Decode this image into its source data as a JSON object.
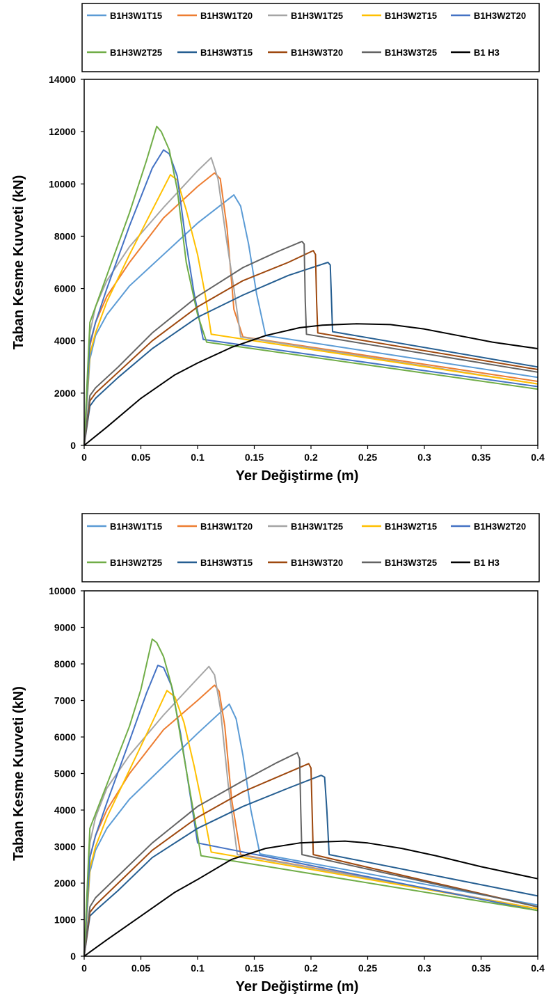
{
  "chart_data": [
    {
      "type": "line",
      "xlabel": "Yer Değiştirme (m)",
      "ylabel": "Taban Kesme Kuvveti (kN)",
      "xlim": [
        0,
        0.4
      ],
      "ylim": [
        0,
        14000
      ],
      "xticks": [
        0,
        0.05,
        0.1,
        0.15,
        0.2,
        0.25,
        0.3,
        0.35,
        0.4
      ],
      "xtick_labels": [
        "0",
        "0.05",
        "0.1",
        "0.15",
        "0.2",
        "0.25",
        "0.3",
        "0.35",
        "0.4"
      ],
      "yticks": [
        0,
        2000,
        4000,
        6000,
        8000,
        10000,
        12000,
        14000
      ],
      "ytick_labels": [
        "0",
        "2000",
        "4000",
        "6000",
        "8000",
        "10000",
        "12000",
        "14000"
      ],
      "grid": false,
      "legend_position": "top",
      "series": [
        {
          "name": "B1H3W1T15",
          "color": "#5B9BD5",
          "x": [
            0,
            0.005,
            0.01,
            0.02,
            0.04,
            0.07,
            0.1,
            0.132,
            0.138,
            0.145,
            0.152,
            0.16,
            0.4
          ],
          "y": [
            0,
            3300,
            4200,
            5000,
            6100,
            7300,
            8500,
            9580,
            9150,
            7700,
            5800,
            4200,
            2600
          ]
        },
        {
          "name": "B1H3W1T20",
          "color": "#ED7D31",
          "x": [
            0,
            0.005,
            0.01,
            0.02,
            0.04,
            0.07,
            0.1,
            0.115,
            0.12,
            0.126,
            0.132,
            0.14,
            0.4
          ],
          "y": [
            0,
            3800,
            4700,
            5700,
            7000,
            8700,
            9900,
            10420,
            10200,
            8300,
            5200,
            4150,
            2450
          ]
        },
        {
          "name": "B1H3W1T25",
          "color": "#A5A5A5",
          "x": [
            0,
            0.005,
            0.01,
            0.02,
            0.04,
            0.07,
            0.1,
            0.112,
            0.118,
            0.125,
            0.132,
            0.138,
            0.4
          ],
          "y": [
            0,
            4300,
            5300,
            6300,
            7600,
            9100,
            10500,
            11000,
            10200,
            8000,
            6000,
            4150,
            2350
          ]
        },
        {
          "name": "B1H3W2T15",
          "color": "#FFC000",
          "x": [
            0,
            0.005,
            0.01,
            0.02,
            0.04,
            0.06,
            0.076,
            0.082,
            0.09,
            0.1,
            0.107,
            0.112,
            0.4
          ],
          "y": [
            0,
            3500,
            4300,
            5500,
            7300,
            9000,
            10350,
            10150,
            9000,
            7300,
            5700,
            4250,
            2350
          ]
        },
        {
          "name": "B1H3W2T20",
          "color": "#4472C4",
          "x": [
            0,
            0.005,
            0.01,
            0.02,
            0.04,
            0.06,
            0.07,
            0.075,
            0.082,
            0.09,
            0.097,
            0.105,
            0.4
          ],
          "y": [
            0,
            3900,
            4700,
            6000,
            8400,
            10600,
            11300,
            11150,
            10300,
            7700,
            5800,
            4050,
            2250
          ]
        },
        {
          "name": "B1H3W2T25",
          "color": "#70AD47",
          "x": [
            0,
            0.005,
            0.01,
            0.02,
            0.04,
            0.055,
            0.064,
            0.068,
            0.075,
            0.082,
            0.09,
            0.1,
            0.108,
            0.4
          ],
          "y": [
            0,
            4700,
            5300,
            6500,
            8900,
            10900,
            12200,
            12000,
            11300,
            9800,
            7000,
            5000,
            3950,
            2150
          ]
        },
        {
          "name": "B1H3W3T15",
          "color": "#255E91",
          "x": [
            0,
            0.005,
            0.01,
            0.03,
            0.06,
            0.1,
            0.14,
            0.18,
            0.215,
            0.217,
            0.218,
            0.219,
            0.4
          ],
          "y": [
            0,
            1500,
            1800,
            2600,
            3700,
            4900,
            5750,
            6500,
            7000,
            6900,
            5700,
            4350,
            3000
          ]
        },
        {
          "name": "B1H3W3T20",
          "color": "#9E480E",
          "x": [
            0,
            0.005,
            0.01,
            0.03,
            0.06,
            0.1,
            0.14,
            0.18,
            0.202,
            0.204,
            0.205,
            0.206,
            0.4
          ],
          "y": [
            0,
            1700,
            2000,
            2800,
            4000,
            5300,
            6300,
            7000,
            7450,
            7300,
            5500,
            4300,
            2900
          ]
        },
        {
          "name": "B1H3W3T25",
          "color": "#636363",
          "x": [
            0,
            0.005,
            0.01,
            0.03,
            0.06,
            0.1,
            0.14,
            0.17,
            0.192,
            0.194,
            0.195,
            0.196,
            0.4
          ],
          "y": [
            0,
            1900,
            2200,
            3000,
            4300,
            5700,
            6800,
            7400,
            7800,
            7700,
            5500,
            4250,
            2800
          ]
        },
        {
          "name": "B1 H3",
          "color": "#000000",
          "x": [
            0,
            0.02,
            0.05,
            0.08,
            0.1,
            0.13,
            0.16,
            0.19,
            0.21,
            0.24,
            0.27,
            0.3,
            0.33,
            0.36,
            0.4
          ],
          "y": [
            0,
            700,
            1800,
            2700,
            3150,
            3750,
            4200,
            4500,
            4600,
            4650,
            4620,
            4450,
            4200,
            3950,
            3700
          ]
        }
      ]
    },
    {
      "type": "line",
      "xlabel": "Yer Değiştirme (m)",
      "ylabel": "Taban Kesme Kuvveti (kN)",
      "xlim": [
        0,
        0.4
      ],
      "ylim": [
        0,
        10000
      ],
      "xticks": [
        0,
        0.05,
        0.1,
        0.15,
        0.2,
        0.25,
        0.3,
        0.35,
        0.4
      ],
      "xtick_labels": [
        "0",
        "0.05",
        "0.1",
        "0.15",
        "0.2",
        "0.25",
        "0.3",
        "0.35",
        "0.4"
      ],
      "yticks": [
        0,
        1000,
        2000,
        3000,
        4000,
        5000,
        6000,
        7000,
        8000,
        9000,
        10000
      ],
      "ytick_labels": [
        "0",
        "1000",
        "2000",
        "3000",
        "4000",
        "5000",
        "6000",
        "7000",
        "8000",
        "9000",
        "10000"
      ],
      "grid": false,
      "legend_position": "top",
      "series": [
        {
          "name": "B1H3W1T15",
          "color": "#5B9BD5",
          "x": [
            0,
            0.005,
            0.01,
            0.02,
            0.04,
            0.07,
            0.1,
            0.128,
            0.134,
            0.14,
            0.147,
            0.155,
            0.4
          ],
          "y": [
            0,
            2300,
            2900,
            3500,
            4300,
            5200,
            6100,
            6900,
            6500,
            5500,
            4000,
            2800,
            1400
          ]
        },
        {
          "name": "B1H3W1T20",
          "color": "#ED7D31",
          "x": [
            0,
            0.005,
            0.01,
            0.02,
            0.04,
            0.07,
            0.1,
            0.115,
            0.119,
            0.124,
            0.13,
            0.138,
            0.4
          ],
          "y": [
            0,
            2700,
            3300,
            4000,
            5000,
            6200,
            7000,
            7420,
            7250,
            6300,
            4300,
            2780,
            1300
          ]
        },
        {
          "name": "B1H3W1T25",
          "color": "#A5A5A5",
          "x": [
            0,
            0.005,
            0.01,
            0.02,
            0.04,
            0.07,
            0.1,
            0.11,
            0.115,
            0.12,
            0.127,
            0.135,
            0.4
          ],
          "y": [
            0,
            3100,
            3800,
            4600,
            5500,
            6600,
            7600,
            7930,
            7700,
            6800,
            4700,
            2780,
            1300
          ]
        },
        {
          "name": "B1H3W2T15",
          "color": "#FFC000",
          "x": [
            0,
            0.005,
            0.01,
            0.02,
            0.04,
            0.06,
            0.073,
            0.08,
            0.088,
            0.097,
            0.105,
            0.112,
            0.4
          ],
          "y": [
            0,
            2400,
            3000,
            3800,
            5100,
            6400,
            7270,
            7100,
            6400,
            5200,
            4000,
            2850,
            1300
          ]
        },
        {
          "name": "B1H3W2T20",
          "color": "#4472C4",
          "x": [
            0,
            0.005,
            0.01,
            0.02,
            0.04,
            0.055,
            0.065,
            0.07,
            0.077,
            0.085,
            0.092,
            0.1,
            0.4
          ],
          "y": [
            0,
            2700,
            3300,
            4200,
            5900,
            7200,
            7960,
            7900,
            7400,
            6100,
            4700,
            3100,
            1250
          ]
        },
        {
          "name": "B1H3W2T25",
          "color": "#70AD47",
          "x": [
            0,
            0.005,
            0.01,
            0.02,
            0.04,
            0.05,
            0.06,
            0.064,
            0.07,
            0.078,
            0.085,
            0.095,
            0.103,
            0.4
          ],
          "y": [
            0,
            3500,
            3900,
            4700,
            6300,
            7300,
            8680,
            8580,
            8200,
            7300,
            6000,
            4200,
            2750,
            1250
          ]
        },
        {
          "name": "B1H3W3T15",
          "color": "#255E91",
          "x": [
            0,
            0.005,
            0.01,
            0.03,
            0.06,
            0.1,
            0.14,
            0.18,
            0.209,
            0.212,
            0.214,
            0.216,
            0.4
          ],
          "y": [
            0,
            1100,
            1250,
            1800,
            2700,
            3500,
            4100,
            4600,
            4950,
            4900,
            4000,
            2780,
            1650
          ]
        },
        {
          "name": "B1H3W3T20",
          "color": "#9E480E",
          "x": [
            0,
            0.005,
            0.01,
            0.03,
            0.06,
            0.1,
            0.14,
            0.17,
            0.198,
            0.2,
            0.201,
            0.202,
            0.4
          ],
          "y": [
            0,
            1200,
            1400,
            2000,
            2900,
            3800,
            4500,
            4900,
            5270,
            5150,
            4000,
            2780,
            1350
          ]
        },
        {
          "name": "B1H3W3T25",
          "color": "#636363",
          "x": [
            0,
            0.005,
            0.01,
            0.03,
            0.06,
            0.1,
            0.14,
            0.17,
            0.188,
            0.19,
            0.191,
            0.192,
            0.4
          ],
          "y": [
            0,
            1350,
            1600,
            2200,
            3100,
            4100,
            4800,
            5300,
            5570,
            5400,
            4000,
            2780,
            1350
          ]
        },
        {
          "name": "B1 H3",
          "color": "#000000",
          "x": [
            0,
            0.02,
            0.05,
            0.08,
            0.1,
            0.13,
            0.16,
            0.19,
            0.21,
            0.23,
            0.25,
            0.28,
            0.31,
            0.35,
            0.4
          ],
          "y": [
            0,
            450,
            1100,
            1750,
            2100,
            2650,
            2950,
            3100,
            3130,
            3150,
            3100,
            2950,
            2750,
            2450,
            2120
          ]
        }
      ]
    }
  ]
}
